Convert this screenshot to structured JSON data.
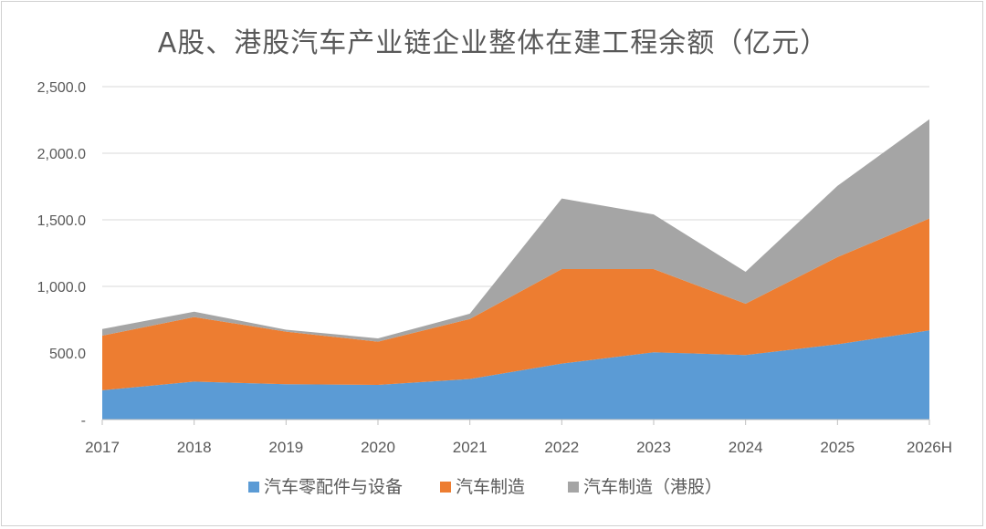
{
  "chart_data": {
    "type": "area",
    "stacked": true,
    "title": "A股、港股汽车产业链企业整体在建工程余额（亿元）",
    "xlabel": "",
    "ylabel": "",
    "categories": [
      "2017",
      "2018",
      "2019",
      "2020",
      "2021",
      "2022",
      "2023",
      "2024",
      "2025",
      "2026H"
    ],
    "y_ticks": [
      "-",
      "500.0",
      "1,000.0",
      "1,500.0",
      "2,000.0",
      "2,500.0"
    ],
    "ylim": [
      0,
      2500
    ],
    "grid": true,
    "legend_position": "bottom",
    "series": [
      {
        "name": "汽车零配件与设备",
        "color": "#5b9bd5",
        "values": [
          220,
          285,
          265,
          260,
          305,
          420,
          505,
          485,
          565,
          670
        ]
      },
      {
        "name": "汽车制造",
        "color": "#ed7d31",
        "values": [
          410,
          485,
          395,
          325,
          450,
          710,
          625,
          385,
          655,
          840
        ]
      },
      {
        "name": "汽车制造（港股）",
        "color": "#a5a5a5",
        "values": [
          50,
          40,
          15,
          25,
          40,
          530,
          410,
          240,
          535,
          745
        ]
      }
    ]
  }
}
